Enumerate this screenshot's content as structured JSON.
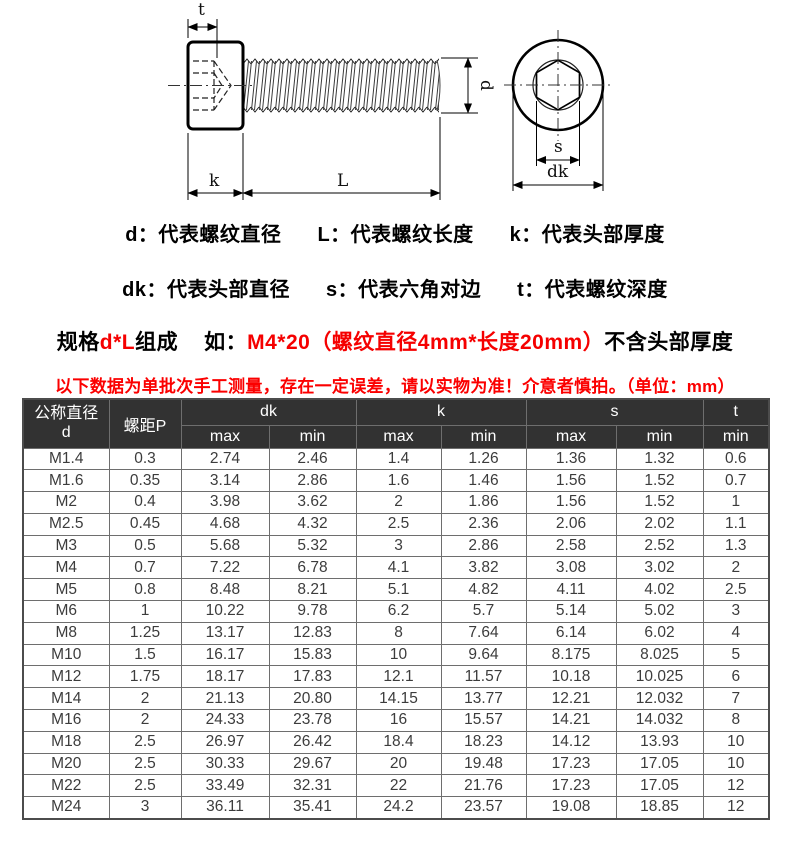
{
  "diagram": {
    "labels": {
      "t": "t",
      "d": "d",
      "k": "k",
      "L": "L",
      "s": "s",
      "dk": "dk"
    }
  },
  "legend": {
    "line1": [
      "d：代表螺纹直径",
      "L：代表螺纹长度",
      "k：代表头部厚度"
    ],
    "line2": [
      "dk：代表头部直径",
      "s：代表六角对边",
      "t：代表螺纹深度"
    ]
  },
  "spec_line": {
    "black1": "规格",
    "red1": "d*L",
    "black2": "组成",
    "black3": "如：",
    "red2": "M4*20（螺纹直径4mm*长度20mm）",
    "black4": "不含头部厚度"
  },
  "notice": "以下数据为单批次手工测量，存在一定误差，请以实物为准！介意者慎拍。（单位：mm）",
  "table": {
    "header": {
      "col_d_line1": "公称直径",
      "col_d_line2": "d",
      "col_p": "螺距P",
      "col_dk": "dk",
      "col_k": "k",
      "col_s": "s",
      "col_t": "t",
      "max": "max",
      "min": "min"
    },
    "rows": [
      [
        "M1.4",
        "0.3",
        "2.74",
        "2.46",
        "1.4",
        "1.26",
        "1.36",
        "1.32",
        "0.6"
      ],
      [
        "M1.6",
        "0.35",
        "3.14",
        "2.86",
        "1.6",
        "1.46",
        "1.56",
        "1.52",
        "0.7"
      ],
      [
        "M2",
        "0.4",
        "3.98",
        "3.62",
        "2",
        "1.86",
        "1.56",
        "1.52",
        "1"
      ],
      [
        "M2.5",
        "0.45",
        "4.68",
        "4.32",
        "2.5",
        "2.36",
        "2.06",
        "2.02",
        "1.1"
      ],
      [
        "M3",
        "0.5",
        "5.68",
        "5.32",
        "3",
        "2.86",
        "2.58",
        "2.52",
        "1.3"
      ],
      [
        "M4",
        "0.7",
        "7.22",
        "6.78",
        "4.1",
        "3.82",
        "3.08",
        "3.02",
        "2"
      ],
      [
        "M5",
        "0.8",
        "8.48",
        "8.21",
        "5.1",
        "4.82",
        "4.11",
        "4.02",
        "2.5"
      ],
      [
        "M6",
        "1",
        "10.22",
        "9.78",
        "6.2",
        "5.7",
        "5.14",
        "5.02",
        "3"
      ],
      [
        "M8",
        "1.25",
        "13.17",
        "12.83",
        "8",
        "7.64",
        "6.14",
        "6.02",
        "4"
      ],
      [
        "M10",
        "1.5",
        "16.17",
        "15.83",
        "10",
        "9.64",
        "8.175",
        "8.025",
        "5"
      ],
      [
        "M12",
        "1.75",
        "18.17",
        "17.83",
        "12.1",
        "11.57",
        "10.18",
        "10.025",
        "6"
      ],
      [
        "M14",
        "2",
        "21.13",
        "20.80",
        "14.15",
        "13.77",
        "12.21",
        "12.032",
        "7"
      ],
      [
        "M16",
        "2",
        "24.33",
        "23.78",
        "16",
        "15.57",
        "14.21",
        "14.032",
        "8"
      ],
      [
        "M18",
        "2.5",
        "26.97",
        "26.42",
        "18.4",
        "18.23",
        "14.12",
        "13.93",
        "10"
      ],
      [
        "M20",
        "2.5",
        "30.33",
        "29.67",
        "20",
        "19.48",
        "17.23",
        "17.05",
        "10"
      ],
      [
        "M22",
        "2.5",
        "33.49",
        "32.31",
        "22",
        "21.76",
        "17.23",
        "17.05",
        "12"
      ],
      [
        "M24",
        "3",
        "36.11",
        "35.41",
        "24.2",
        "23.57",
        "19.08",
        "18.85",
        "12"
      ]
    ]
  }
}
